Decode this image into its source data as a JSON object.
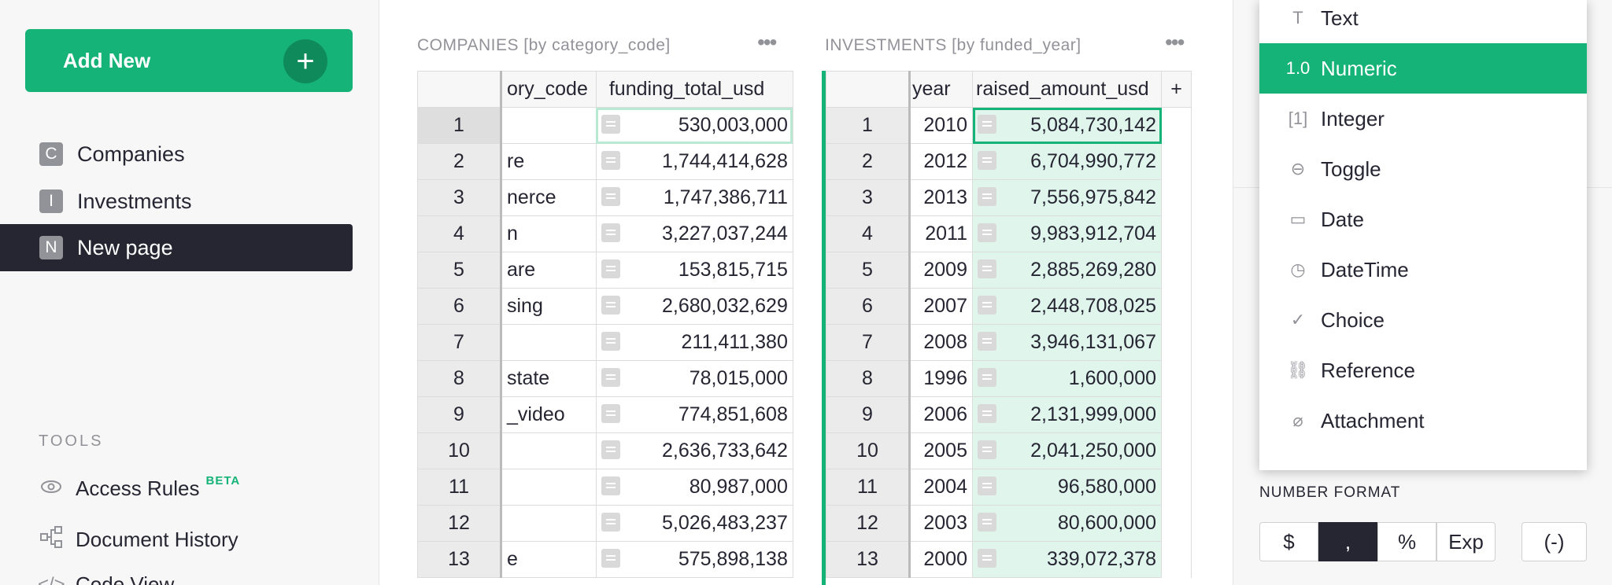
{
  "left_panel": {
    "add_new_label": "Add New",
    "add_new_icon": "plus-icon",
    "pages": [
      {
        "badge": "C",
        "label": "Companies"
      },
      {
        "badge": "I",
        "label": "Investments"
      },
      {
        "badge": "N",
        "label": "New page"
      }
    ],
    "tools_label": "TOOLS",
    "tools": [
      {
        "label": "Access Rules",
        "badge": "BETA",
        "icon": "eye-icon"
      },
      {
        "label": "Document History",
        "icon": "history-icon"
      },
      {
        "label": "Code View",
        "icon": "code-icon"
      }
    ]
  },
  "companies": {
    "title": "COMPANIES [by category_code]",
    "col1": "ory_code",
    "col2": "funding_total_usd",
    "rows": [
      {
        "n": "1",
        "cat": "",
        "val": "530,003,000"
      },
      {
        "n": "2",
        "cat": "re",
        "val": "1,744,414,628"
      },
      {
        "n": "3",
        "cat": "nerce",
        "val": "1,747,386,711"
      },
      {
        "n": "4",
        "cat": "n",
        "val": "3,227,037,244"
      },
      {
        "n": "5",
        "cat": "are",
        "val": "153,815,715"
      },
      {
        "n": "6",
        "cat": "sing",
        "val": "2,680,032,629"
      },
      {
        "n": "7",
        "cat": "",
        "val": "211,411,380"
      },
      {
        "n": "8",
        "cat": "state",
        "val": "78,015,000"
      },
      {
        "n": "9",
        "cat": "_video",
        "val": "774,851,608"
      },
      {
        "n": "10",
        "cat": "",
        "val": "2,636,733,642"
      },
      {
        "n": "11",
        "cat": "",
        "val": "80,987,000"
      },
      {
        "n": "12",
        "cat": "",
        "val": "5,026,483,237"
      },
      {
        "n": "13",
        "cat": "e",
        "val": "575,898,138"
      }
    ]
  },
  "investments": {
    "title": "INVESTMENTS [by funded_year]",
    "col1": "year",
    "col2": "raised_amount_usd",
    "add_col": "+",
    "rows": [
      {
        "n": "1",
        "year": "2010",
        "val": "5,084,730,142"
      },
      {
        "n": "2",
        "year": "2012",
        "val": "6,704,990,772"
      },
      {
        "n": "3",
        "year": "2013",
        "val": "7,556,975,842"
      },
      {
        "n": "4",
        "year": "2011",
        "val": "9,983,912,704"
      },
      {
        "n": "5",
        "year": "2009",
        "val": "2,885,269,280"
      },
      {
        "n": "6",
        "year": "2007",
        "val": "2,448,708,025"
      },
      {
        "n": "7",
        "year": "2008",
        "val": "3,946,131,067"
      },
      {
        "n": "8",
        "year": "1996",
        "val": "1,600,000"
      },
      {
        "n": "9",
        "year": "2006",
        "val": "2,131,999,000"
      },
      {
        "n": "10",
        "year": "2005",
        "val": "2,041,250,000"
      },
      {
        "n": "11",
        "year": "2004",
        "val": "96,580,000"
      },
      {
        "n": "12",
        "year": "2003",
        "val": "80,600,000"
      },
      {
        "n": "13",
        "year": "2000",
        "val": "339,072,378"
      }
    ]
  },
  "type_menu": {
    "options": [
      {
        "label": "Text",
        "icon": "text-icon",
        "glyph": "T"
      },
      {
        "label": "Numeric",
        "icon": "numeric-icon",
        "glyph": "1.0",
        "selected": true
      },
      {
        "label": "Integer",
        "icon": "integer-icon",
        "glyph": "[1]"
      },
      {
        "label": "Toggle",
        "icon": "toggle-icon",
        "glyph": "⊖"
      },
      {
        "label": "Date",
        "icon": "calendar-icon",
        "glyph": "▭"
      },
      {
        "label": "DateTime",
        "icon": "clock-icon",
        "glyph": "◷"
      },
      {
        "label": "Choice",
        "icon": "check-circle-icon",
        "glyph": "✓"
      },
      {
        "label": "Reference",
        "icon": "link-icon",
        "glyph": "⛓"
      },
      {
        "label": "Attachment",
        "icon": "paperclip-icon",
        "glyph": "⌀"
      }
    ]
  },
  "number_format": {
    "label": "NUMBER FORMAT",
    "buttons": [
      "$",
      ",",
      "%",
      "Exp"
    ],
    "active": ",",
    "parens": "(-)"
  },
  "colors": {
    "accent": "#16b378",
    "dark": "#262633",
    "muted": "#929299"
  }
}
